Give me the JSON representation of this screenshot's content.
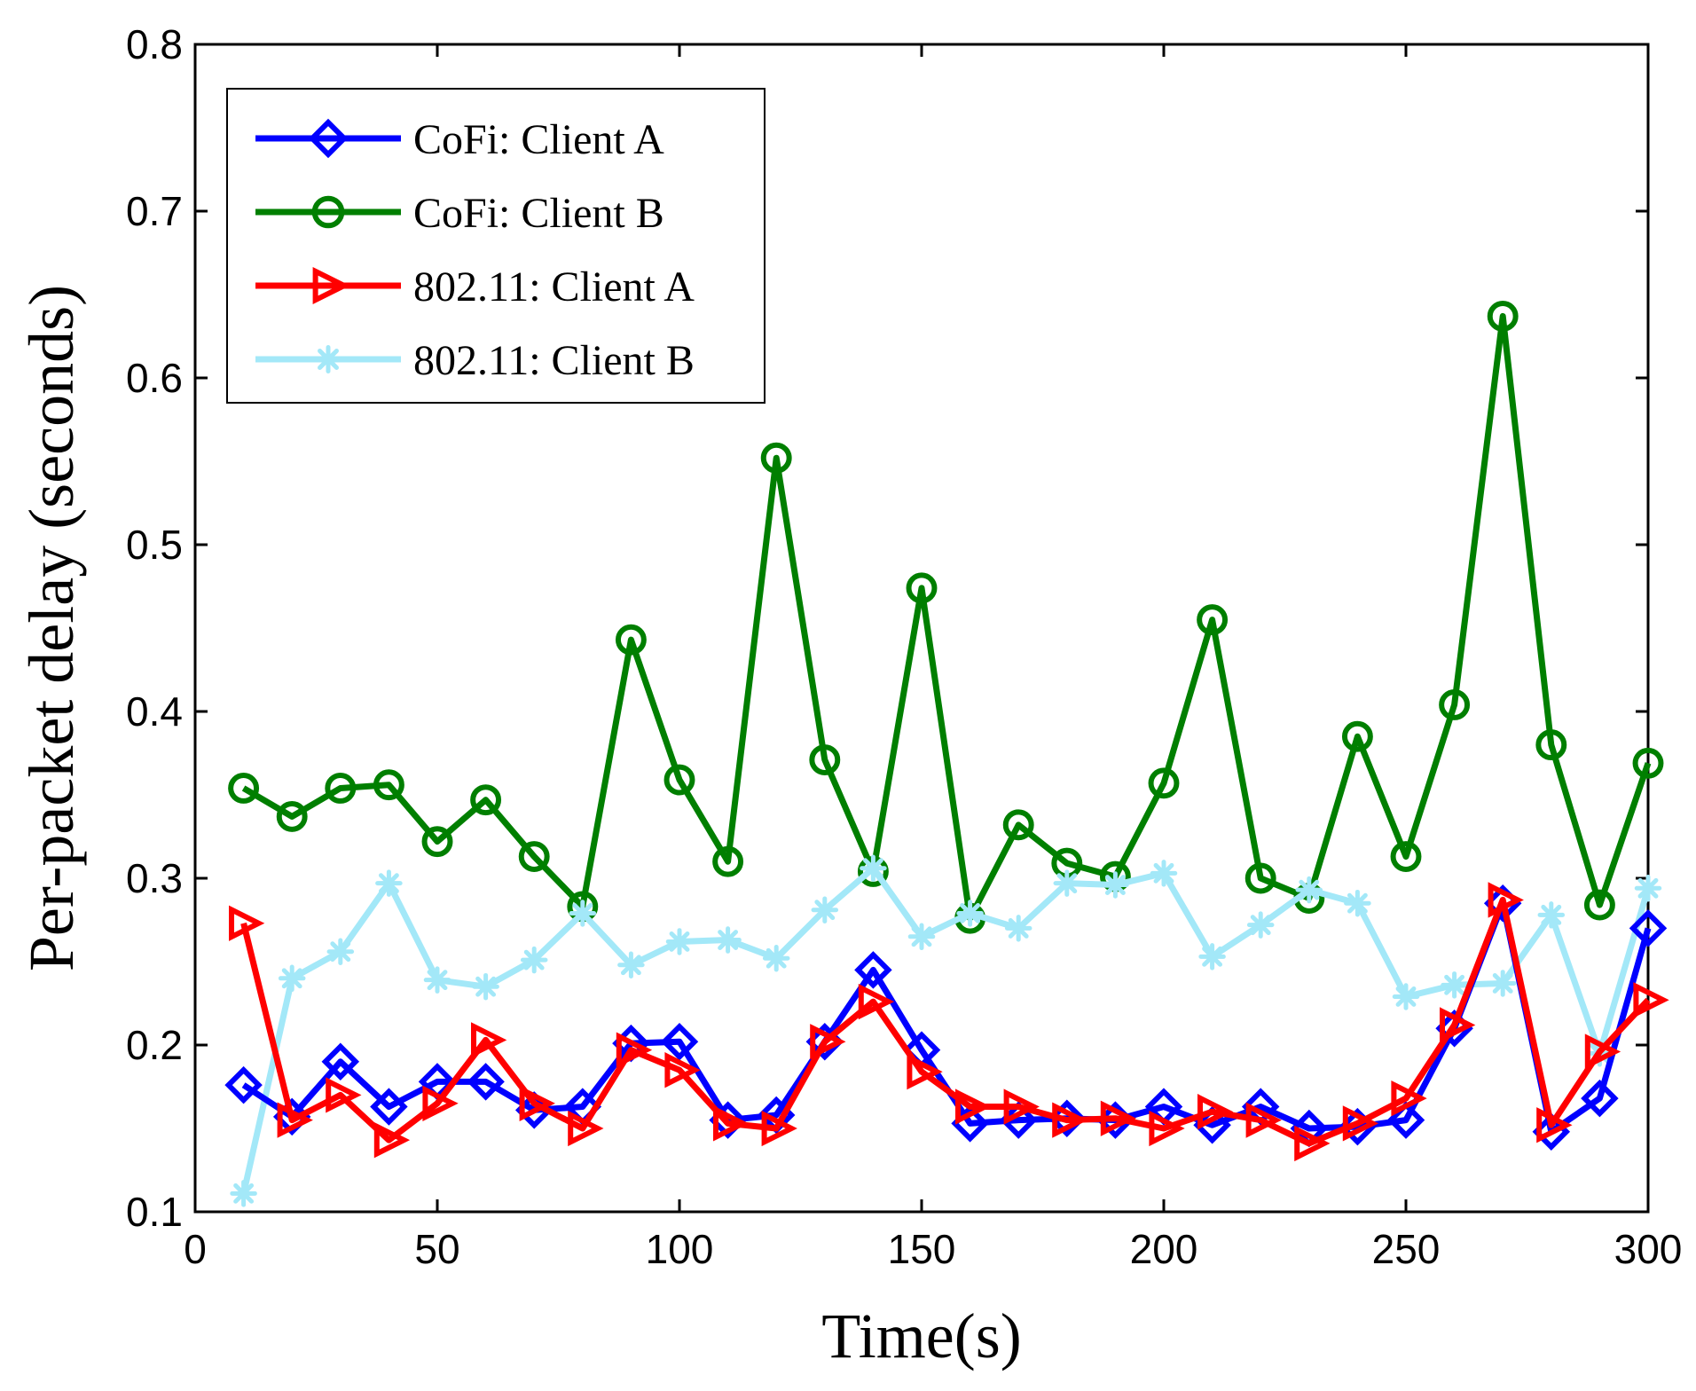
{
  "chart_data": {
    "type": "line",
    "title": "",
    "xlabel": "Time(s)",
    "ylabel": "Per-packet delay (seconds)",
    "xlim": [
      0,
      300
    ],
    "ylim": [
      0.1,
      0.8
    ],
    "xticks": [
      0,
      50,
      100,
      150,
      200,
      250,
      300
    ],
    "yticks": [
      0.1,
      0.2,
      0.3,
      0.4,
      0.5,
      0.6,
      0.7,
      0.8
    ],
    "xtick_labels": [
      "0",
      "50",
      "100",
      "150",
      "200",
      "250",
      "300"
    ],
    "ytick_labels": [
      "0.1",
      "0.2",
      "0.3",
      "0.4",
      "0.5",
      "0.6",
      "0.7",
      "0.8"
    ],
    "grid": false,
    "legend_position": "top-left",
    "x": [
      10,
      20,
      30,
      40,
      50,
      60,
      70,
      80,
      90,
      100,
      110,
      120,
      130,
      140,
      150,
      160,
      170,
      180,
      190,
      200,
      210,
      220,
      230,
      240,
      250,
      260,
      270,
      280,
      290,
      300
    ],
    "series": [
      {
        "name": "CoFi: Client A",
        "color": "#0000ff",
        "marker": "diamond",
        "values": [
          0.176,
          0.157,
          0.19,
          0.163,
          0.178,
          0.178,
          0.161,
          0.163,
          0.201,
          0.202,
          0.155,
          0.158,
          0.202,
          0.245,
          0.197,
          0.153,
          0.155,
          0.156,
          0.155,
          0.163,
          0.152,
          0.163,
          0.15,
          0.151,
          0.155,
          0.21,
          0.285,
          0.148,
          0.168,
          0.27
        ]
      },
      {
        "name": "CoFi: Client B",
        "color": "#007f00",
        "marker": "circle",
        "values": [
          0.354,
          0.337,
          0.354,
          0.356,
          0.322,
          0.347,
          0.313,
          0.283,
          0.443,
          0.359,
          0.31,
          0.552,
          0.371,
          0.304,
          0.474,
          0.276,
          0.332,
          0.309,
          0.301,
          0.357,
          0.455,
          0.3,
          0.288,
          0.385,
          0.313,
          0.404,
          0.637,
          0.38,
          0.284,
          0.369
        ]
      },
      {
        "name": "802.11: Client A",
        "color": "#ff0000",
        "marker": "triangle-right",
        "values": [
          0.273,
          0.155,
          0.17,
          0.143,
          0.165,
          0.203,
          0.165,
          0.15,
          0.197,
          0.185,
          0.153,
          0.15,
          0.202,
          0.226,
          0.184,
          0.163,
          0.163,
          0.155,
          0.156,
          0.15,
          0.16,
          0.155,
          0.141,
          0.153,
          0.168,
          0.212,
          0.287,
          0.152,
          0.196,
          0.227
        ]
      },
      {
        "name": "802.11: Client B",
        "color": "#a3e8f8",
        "marker": "star",
        "values": [
          0.111,
          0.24,
          0.256,
          0.297,
          0.239,
          0.235,
          0.251,
          0.279,
          0.248,
          0.262,
          0.263,
          0.252,
          0.281,
          0.306,
          0.265,
          0.279,
          0.27,
          0.297,
          0.296,
          0.303,
          0.253,
          0.272,
          0.293,
          0.285,
          0.229,
          0.236,
          0.237,
          0.278,
          0.195,
          0.294
        ]
      }
    ]
  }
}
